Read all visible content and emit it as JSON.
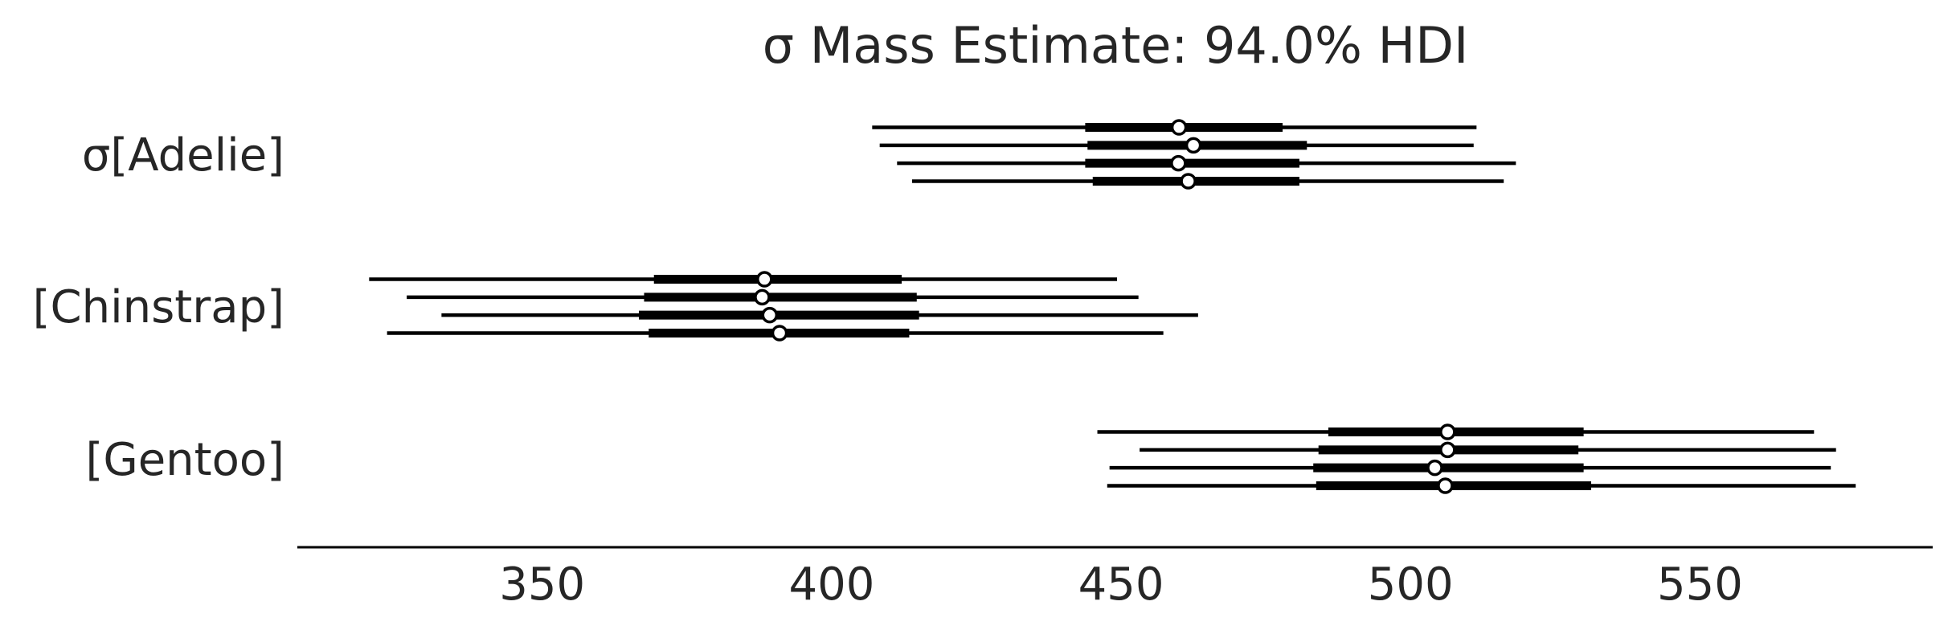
{
  "chart_data": {
    "type": "forest",
    "title": "σ Mass Estimate: 94.0% HDI",
    "xlabel": "",
    "ylabel": "",
    "xlim": [
      307.7,
      590.2
    ],
    "xticks": [
      350,
      400,
      450,
      500,
      550
    ],
    "grid": false,
    "categories": [
      "σ[Adelie]",
      "[Chinstrap]",
      "[Gentoo]"
    ],
    "rows": [
      {
        "category": "σ[Adelie]",
        "chains": [
          {
            "hdi_low": 407.0,
            "hdi_high": 511.4,
            "iqr_low": 443.8,
            "iqr_high": 477.9,
            "median": 460.0
          },
          {
            "hdi_low": 408.3,
            "hdi_high": 510.9,
            "iqr_low": 444.2,
            "iqr_high": 482.1,
            "median": 462.5
          },
          {
            "hdi_low": 411.3,
            "hdi_high": 518.2,
            "iqr_low": 443.8,
            "iqr_high": 480.8,
            "median": 459.9
          },
          {
            "hdi_low": 413.9,
            "hdi_high": 516.1,
            "iqr_low": 445.1,
            "iqr_high": 480.8,
            "median": 461.6
          }
        ]
      },
      {
        "category": "[Chinstrap]",
        "chains": [
          {
            "hdi_low": 320.1,
            "hdi_high": 449.3,
            "iqr_low": 369.3,
            "iqr_high": 412.1,
            "median": 388.4
          },
          {
            "hdi_low": 326.6,
            "hdi_high": 453.0,
            "iqr_low": 367.6,
            "iqr_high": 414.7,
            "median": 388.0
          },
          {
            "hdi_low": 332.6,
            "hdi_high": 463.3,
            "iqr_low": 366.7,
            "iqr_high": 415.1,
            "median": 389.3
          },
          {
            "hdi_low": 323.2,
            "hdi_high": 457.3,
            "iqr_low": 368.4,
            "iqr_high": 413.4,
            "median": 391.0
          }
        ]
      },
      {
        "category": "[Gentoo]",
        "chains": [
          {
            "hdi_low": 445.9,
            "hdi_high": 569.7,
            "iqr_low": 485.8,
            "iqr_high": 529.9,
            "median": 506.4
          },
          {
            "hdi_low": 453.2,
            "hdi_high": 573.5,
            "iqr_low": 484.1,
            "iqr_high": 529.0,
            "median": 506.4
          },
          {
            "hdi_low": 448.0,
            "hdi_high": 572.6,
            "iqr_low": 483.2,
            "iqr_high": 529.9,
            "median": 504.2
          },
          {
            "hdi_low": 447.6,
            "hdi_high": 576.9,
            "iqr_low": 483.7,
            "iqr_high": 531.2,
            "median": 506.0
          }
        ]
      }
    ]
  }
}
